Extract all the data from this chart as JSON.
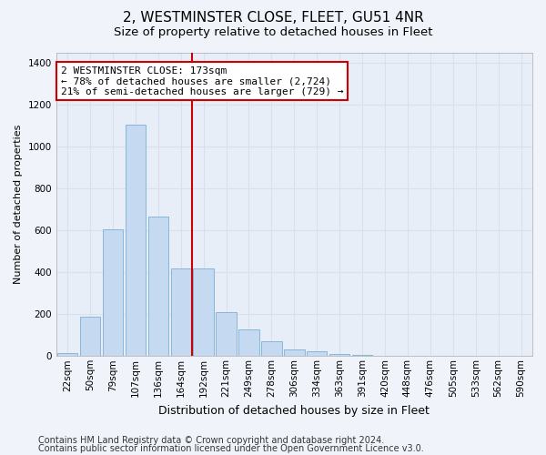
{
  "title1": "2, WESTMINSTER CLOSE, FLEET, GU51 4NR",
  "title2": "Size of property relative to detached houses in Fleet",
  "xlabel": "Distribution of detached houses by size in Fleet",
  "ylabel": "Number of detached properties",
  "categories": [
    "22sqm",
    "50sqm",
    "79sqm",
    "107sqm",
    "136sqm",
    "164sqm",
    "192sqm",
    "221sqm",
    "249sqm",
    "278sqm",
    "306sqm",
    "334sqm",
    "363sqm",
    "391sqm",
    "420sqm",
    "448sqm",
    "476sqm",
    "505sqm",
    "533sqm",
    "562sqm",
    "590sqm"
  ],
  "values": [
    15,
    190,
    605,
    1105,
    665,
    420,
    420,
    210,
    125,
    70,
    32,
    25,
    10,
    5,
    2,
    2,
    1,
    1,
    1,
    1,
    1
  ],
  "bar_color": "#c5d9f0",
  "bar_edge_color": "#7bafd4",
  "vline_index": 6,
  "vline_color": "#cc0000",
  "annotation_text": "2 WESTMINSTER CLOSE: 173sqm\n← 78% of detached houses are smaller (2,724)\n21% of semi-detached houses are larger (729) →",
  "annotation_box_color": "#ffffff",
  "annotation_box_edge_color": "#cc0000",
  "ylim": [
    0,
    1450
  ],
  "yticks": [
    0,
    200,
    400,
    600,
    800,
    1000,
    1200,
    1400
  ],
  "footer1": "Contains HM Land Registry data © Crown copyright and database right 2024.",
  "footer2": "Contains public sector information licensed under the Open Government Licence v3.0.",
  "bg_color": "#f0f4fa",
  "plot_bg_color": "#e8eef8",
  "grid_color": "#d8e0ec",
  "title1_fontsize": 11,
  "title2_fontsize": 9.5,
  "xlabel_fontsize": 9,
  "ylabel_fontsize": 8,
  "tick_fontsize": 7.5,
  "annotation_fontsize": 8,
  "footer_fontsize": 7
}
